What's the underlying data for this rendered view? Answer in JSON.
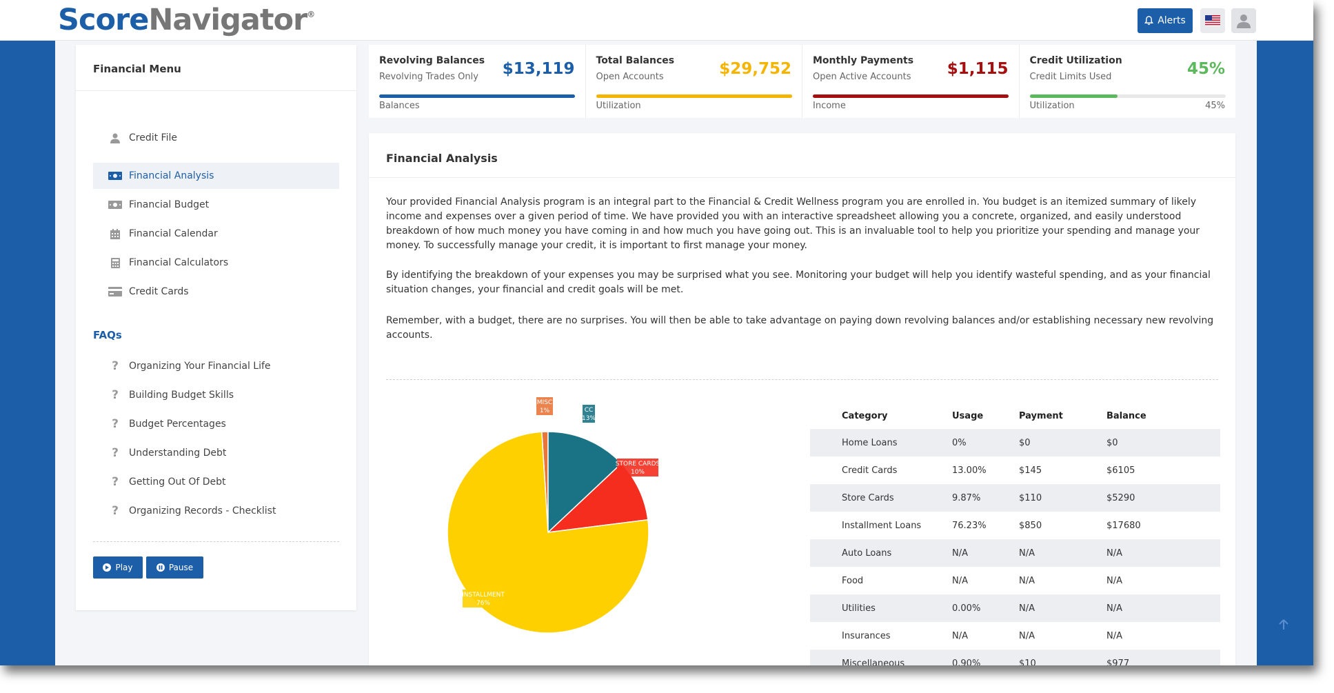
{
  "header": {
    "logo_part1": "Score",
    "logo_part2": "Navigator",
    "logo_mark": "®",
    "alerts_label": "Alerts",
    "icons": [
      "bell-icon",
      "us-flag-icon",
      "user-avatar-icon"
    ]
  },
  "sidebar": {
    "title": "Financial Menu",
    "items": [
      {
        "label": "Credit File",
        "icon": "user-icon",
        "active": false
      },
      {
        "label": "Financial Analysis",
        "icon": "money-bill-icon",
        "active": true
      },
      {
        "label": "Financial Budget",
        "icon": "money-bill-icon",
        "active": false
      },
      {
        "label": "Financial Calendar",
        "icon": "calendar-icon",
        "active": false
      },
      {
        "label": "Financial Calculators",
        "icon": "calculator-icon",
        "active": false
      },
      {
        "label": "Credit Cards",
        "icon": "credit-card-icon",
        "active": false
      }
    ],
    "faqs_title": "FAQs",
    "faqs": [
      "Organizing Your Financial Life",
      "Building Budget Skills",
      "Budget Percentages",
      "Understanding Debt",
      "Getting Out Of Debt",
      "Organizing Records - Checklist"
    ],
    "play_label": "Play",
    "pause_label": "Pause"
  },
  "stats": [
    {
      "label": "Revolving Balances",
      "sub": "Revolving Trades Only",
      "value": "$13,119",
      "foot": "Balances",
      "foot_right": "",
      "color": "#1d5ea8",
      "fill": 1.0
    },
    {
      "label": "Total Balances",
      "sub": "Open Accounts",
      "value": "$29,752",
      "foot": "Utilization",
      "foot_right": "",
      "color": "#f4b400",
      "fill": 1.0
    },
    {
      "label": "Monthly Payments",
      "sub": "Open Active Accounts",
      "value": "$1,115",
      "foot": "Income",
      "foot_right": "",
      "color": "#a50f0f",
      "fill": 1.0
    },
    {
      "label": "Credit Utilization",
      "sub": "Credit Limits Used",
      "value": "45%",
      "foot": "Utilization",
      "foot_right": "45%",
      "color": "#5cb85c",
      "fill": 0.45
    }
  ],
  "analysis": {
    "title": "Financial Analysis",
    "paragraphs": [
      "Your provided Financial Analysis program is an integral part to the Financial & Credit Wellness program you are enrolled in. You budget is an itemized summary of likely income and expenses over a given period of time. We have provided you with an interactive spreadsheet allowing you a concrete, organized, and easily understood breakdown of how much money you have coming in and how much you have going out. This is an invaluable tool to help you prioritize your spending and manage your money. To successfully manage your credit, it is important to first manage your money.",
      "By identifying the breakdown of your expenses you may be surprised what you see. Monitoring your budget will help you identify wasteful spending, and as your financial situation changes, your financial and credit goals will be met.",
      "Remember, with a budget, there are no surprises. You will then be able to take advantage on paying down revolving balances and/or establishing necessary new revolving accounts."
    ]
  },
  "table": {
    "headers": [
      "Category",
      "Usage",
      "Payment",
      "Balance"
    ],
    "rows": [
      [
        "Home Loans",
        "0%",
        "$0",
        "$0"
      ],
      [
        "Credit Cards",
        "13.00%",
        "$145",
        "$6105"
      ],
      [
        "Store Cards",
        "9.87%",
        "$110",
        "$5290"
      ],
      [
        "Installment Loans",
        "76.23%",
        "$850",
        "$17680"
      ],
      [
        "Auto Loans",
        "N/A",
        "N/A",
        "N/A"
      ],
      [
        "Food",
        "N/A",
        "N/A",
        "N/A"
      ],
      [
        "Utilities",
        "0.00%",
        "N/A",
        "N/A"
      ],
      [
        "Insurances",
        "N/A",
        "N/A",
        "N/A"
      ],
      [
        "Miscellaneous",
        "0.90%",
        "$10",
        "$977"
      ]
    ]
  },
  "chart_data": {
    "type": "pie",
    "slices": [
      {
        "name": "MISC",
        "value": 1,
        "label": "1%",
        "color": "#e8763a"
      },
      {
        "name": "CC",
        "value": 13,
        "label": "13%",
        "color": "#1a7385"
      },
      {
        "name": "STORE CARDS",
        "value": 10,
        "label": "10%",
        "color": "#f42d1f"
      },
      {
        "name": "INSTALLMENT",
        "value": 76,
        "label": "76%",
        "color": "#ffd000"
      }
    ]
  }
}
